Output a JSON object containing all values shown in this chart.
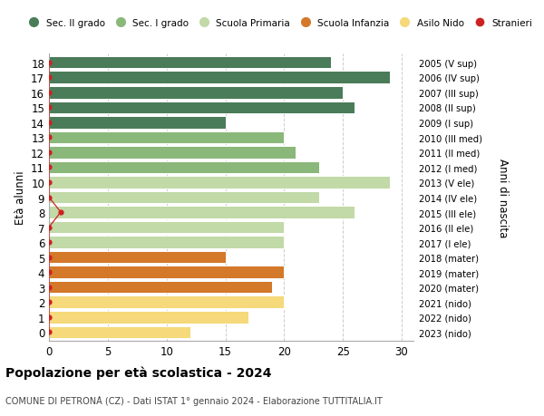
{
  "ages": [
    18,
    17,
    16,
    15,
    14,
    13,
    12,
    11,
    10,
    9,
    8,
    7,
    6,
    5,
    4,
    3,
    2,
    1,
    0
  ],
  "values": [
    24,
    29,
    25,
    26,
    15,
    20,
    21,
    23,
    29,
    23,
    26,
    20,
    20,
    15,
    20,
    19,
    20,
    17,
    12
  ],
  "year_labels": [
    "2005 (V sup)",
    "2006 (IV sup)",
    "2007 (III sup)",
    "2008 (II sup)",
    "2009 (I sup)",
    "2010 (III med)",
    "2011 (II med)",
    "2012 (I med)",
    "2013 (V ele)",
    "2014 (IV ele)",
    "2015 (III ele)",
    "2016 (II ele)",
    "2017 (I ele)",
    "2018 (mater)",
    "2019 (mater)",
    "2020 (mater)",
    "2021 (nido)",
    "2022 (nido)",
    "2023 (nido)"
  ],
  "bar_colors": [
    "#4a7c59",
    "#4a7c59",
    "#4a7c59",
    "#4a7c59",
    "#4a7c59",
    "#8ab87a",
    "#8ab87a",
    "#8ab87a",
    "#c2d9a8",
    "#c2d9a8",
    "#c2d9a8",
    "#c2d9a8",
    "#c2d9a8",
    "#d4782a",
    "#d4782a",
    "#d4782a",
    "#f5d97a",
    "#f5d97a",
    "#f5d97a"
  ],
  "stranieri_x": [
    0,
    0,
    0,
    0,
    0,
    0,
    0,
    0,
    0,
    0,
    1,
    0,
    0,
    0,
    0,
    0,
    0,
    0,
    0
  ],
  "title": "Popolazione per età scolastica - 2024",
  "subtitle": "COMUNE DI PETRONÀ (CZ) - Dati ISTAT 1° gennaio 2024 - Elaborazione TUTTITALIA.IT",
  "ylabel": "Età alunni",
  "right_label": "Anni di nascita",
  "xlim": [
    0,
    31
  ],
  "xticks": [
    0,
    5,
    10,
    15,
    20,
    25,
    30
  ],
  "legend_labels": [
    "Sec. II grado",
    "Sec. I grado",
    "Scuola Primaria",
    "Scuola Infanzia",
    "Asilo Nido",
    "Stranieri"
  ],
  "legend_colors": [
    "#4a7c59",
    "#8ab87a",
    "#c2d9a8",
    "#d4782a",
    "#f5d97a",
    "#cc2222"
  ],
  "stranieri_color": "#cc2222",
  "bg_color": "#ffffff",
  "grid_color": "#cccccc"
}
